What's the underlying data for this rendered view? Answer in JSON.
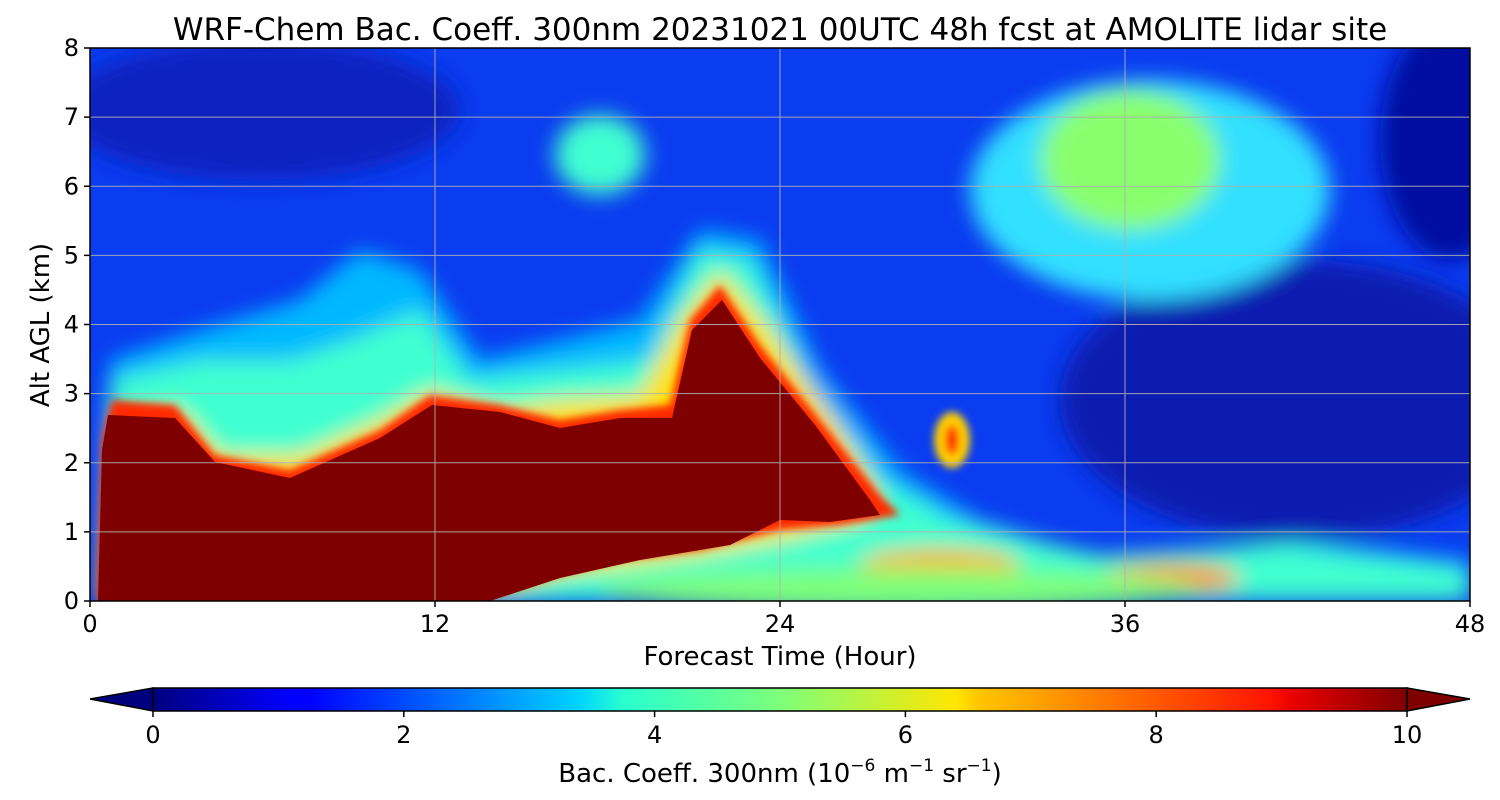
{
  "chart_data": {
    "type": "heatmap",
    "title": "WRF-Chem Bac. Coeff. 300nm  20231021 00UTC 48h fcst at AMOLITE lidar site",
    "xlabel": "Forecast Time (Hour)",
    "ylabel": "Alt AGL (km)",
    "xlim": [
      0,
      48
    ],
    "ylim": [
      0,
      8
    ],
    "xticks": [
      0,
      12,
      24,
      36,
      48
    ],
    "yticks": [
      0,
      1,
      2,
      3,
      4,
      5,
      6,
      7,
      8
    ],
    "grid": true,
    "colormap": "jet",
    "colorbar": {
      "label_main": "Bac. Coeff. 300nm  (10",
      "label_exp1": "−6",
      "label_mid": " m",
      "label_exp2": "−1",
      "label_end": " sr",
      "label_exp3": "−1",
      "label_close": ")",
      "range": [
        0,
        10
      ],
      "ticks": [
        0,
        2,
        4,
        6,
        8,
        10
      ],
      "extend": "both",
      "placement": "bottom"
    },
    "background_value": 1.2,
    "features": [
      {
        "name": "low-level aerosol layer",
        "x": 11,
        "y": 1.4,
        "rx": 13,
        "ry": 1.6,
        "value": 10
      },
      {
        "name": "plume peak",
        "x": 22.5,
        "y": 2.6,
        "rx": 2.4,
        "ry": 2.1,
        "value": 9
      },
      {
        "name": "isolated blob",
        "x": 28.5,
        "y": 2.3,
        "rx": 0.7,
        "ry": 0.5,
        "value": 8
      },
      {
        "name": "near-surface layer 1",
        "x": 29,
        "y": 0.5,
        "rx": 2.6,
        "ry": 0.3,
        "value": 7
      },
      {
        "name": "near-surface layer 2",
        "x": 37,
        "y": 0.3,
        "rx": 2.4,
        "ry": 0.25,
        "value": 7.5
      },
      {
        "name": "upper-level patch",
        "x": 37,
        "y": 6.5,
        "rx": 3.5,
        "ry": 1.3,
        "value": 5
      },
      {
        "name": "small upper blob",
        "x": 17.5,
        "y": 6.4,
        "rx": 1,
        "ry": 0.6,
        "value": 4.5
      }
    ]
  }
}
